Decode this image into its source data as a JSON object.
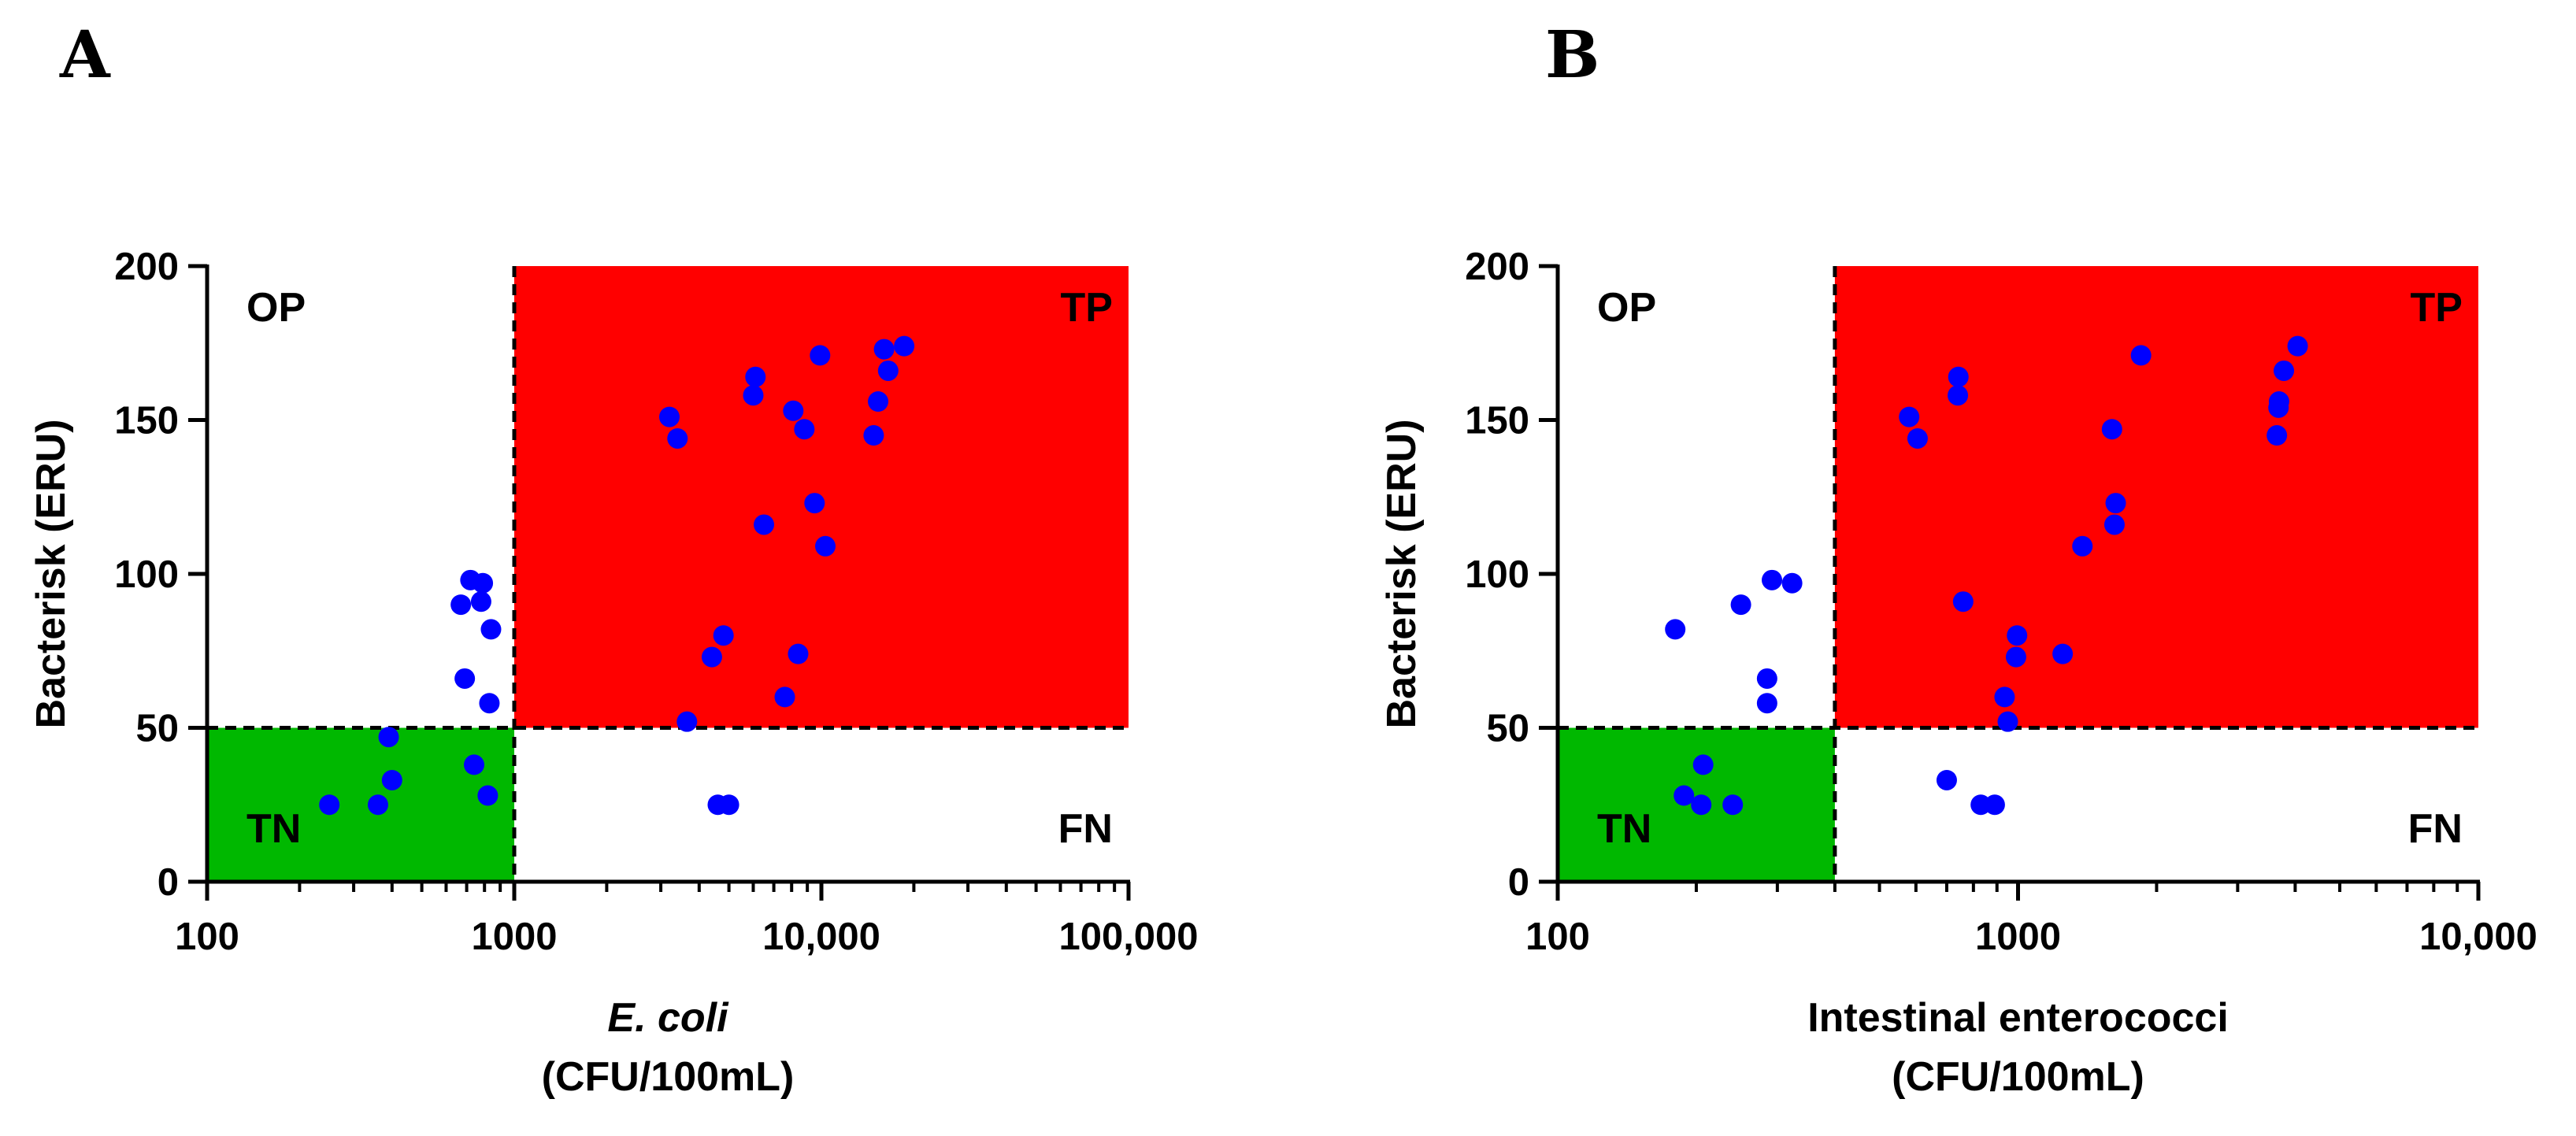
{
  "colors": {
    "tp": "#ff0000",
    "tn": "#00b800",
    "point": "#0000ff",
    "axis": "#000000"
  },
  "chart_data": [
    {
      "panel": "A",
      "type": "scatter",
      "xscale": "log",
      "xlim": [
        100,
        100000
      ],
      "ylim": [
        0,
        200
      ],
      "xticks": [
        100,
        1000,
        10000,
        100000
      ],
      "xtick_labels": [
        "100",
        "1000",
        "10,000",
        "100,000"
      ],
      "yticks": [
        0,
        50,
        100,
        150,
        200
      ],
      "ytick_labels": [
        "0",
        "50",
        "100",
        "150",
        "200"
      ],
      "ylabel": "Bacterisk (ERU)",
      "xlabel_italic": "E. coli",
      "xlabel_unit": "(CFU/100mL)",
      "x_threshold": 1000,
      "y_threshold": 50,
      "quadrants": {
        "top_left": "OP",
        "top_right": "TP",
        "bottom_left": "TN",
        "bottom_right": "FN"
      },
      "points": [
        [
          250,
          25
        ],
        [
          360,
          25
        ],
        [
          390,
          47
        ],
        [
          400,
          33
        ],
        [
          670,
          90
        ],
        [
          690,
          66
        ],
        [
          720,
          98
        ],
        [
          740,
          38
        ],
        [
          780,
          91
        ],
        [
          790,
          97
        ],
        [
          820,
          28
        ],
        [
          830,
          58
        ],
        [
          840,
          82
        ],
        [
          3200,
          151
        ],
        [
          3400,
          144
        ],
        [
          3650,
          52
        ],
        [
          4400,
          73
        ],
        [
          4600,
          25
        ],
        [
          4800,
          80
        ],
        [
          5000,
          25
        ],
        [
          6000,
          158
        ],
        [
          6100,
          164
        ],
        [
          6500,
          116
        ],
        [
          7600,
          60
        ],
        [
          8100,
          153
        ],
        [
          8400,
          74
        ],
        [
          8800,
          147
        ],
        [
          9500,
          123
        ],
        [
          9900,
          171
        ],
        [
          10300,
          109
        ],
        [
          14800,
          145
        ],
        [
          15300,
          156
        ],
        [
          16000,
          173
        ],
        [
          16500,
          166
        ],
        [
          18600,
          174
        ]
      ]
    },
    {
      "panel": "B",
      "type": "scatter",
      "xscale": "log",
      "xlim": [
        100,
        10000
      ],
      "ylim": [
        0,
        200
      ],
      "xticks": [
        100,
        1000,
        10000
      ],
      "xtick_labels": [
        "100",
        "1000",
        "10,000"
      ],
      "yticks": [
        0,
        50,
        100,
        150,
        200
      ],
      "ytick_labels": [
        "0",
        "50",
        "100",
        "150",
        "200"
      ],
      "ylabel": "Bacterisk (ERU)",
      "xlabel": "Intestinal enterococci",
      "xlabel_unit": "(CFU/100mL)",
      "x_threshold": 400,
      "y_threshold": 50,
      "quadrants": {
        "top_left": "OP",
        "top_right": "TP",
        "bottom_left": "TN",
        "bottom_right": "FN"
      },
      "points": [
        [
          180,
          82
        ],
        [
          188,
          28
        ],
        [
          205,
          25
        ],
        [
          207,
          38
        ],
        [
          240,
          25
        ],
        [
          250,
          90
        ],
        [
          285,
          66
        ],
        [
          285,
          58
        ],
        [
          292,
          98
        ],
        [
          323,
          97
        ],
        [
          580,
          151
        ],
        [
          605,
          144
        ],
        [
          700,
          33
        ],
        [
          740,
          158
        ],
        [
          742,
          164
        ],
        [
          760,
          91
        ],
        [
          830,
          25
        ],
        [
          890,
          25
        ],
        [
          935,
          60
        ],
        [
          950,
          52
        ],
        [
          990,
          73
        ],
        [
          995,
          80
        ],
        [
          1250,
          74
        ],
        [
          1380,
          109
        ],
        [
          1600,
          147
        ],
        [
          1620,
          116
        ],
        [
          1630,
          123
        ],
        [
          1850,
          171
        ],
        [
          3650,
          145
        ],
        [
          3680,
          154
        ],
        [
          3690,
          156
        ],
        [
          3780,
          166
        ],
        [
          4050,
          174
        ]
      ]
    }
  ]
}
